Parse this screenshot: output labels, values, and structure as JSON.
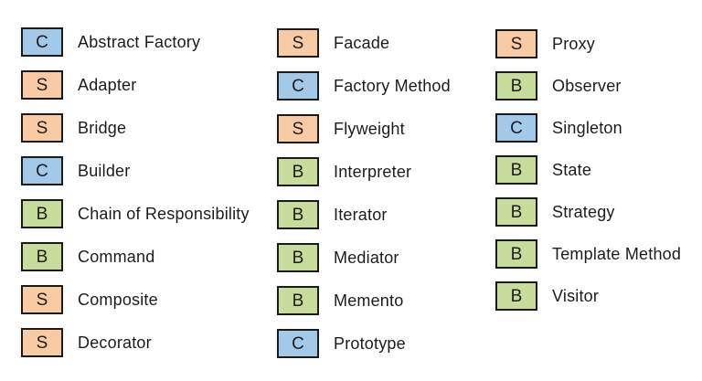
{
  "legend": {
    "category_colors": {
      "C": "#A3C9E9",
      "S": "#F8CBA4",
      "B": "#C8DC9B"
    },
    "border_color": "#1A1A1A",
    "text_color": "#1C1C1C",
    "columns": [
      {
        "items": [
          {
            "badge": "C",
            "label": "Abstract Factory"
          },
          {
            "badge": "S",
            "label": "Adapter"
          },
          {
            "badge": "S",
            "label": "Bridge"
          },
          {
            "badge": "C",
            "label": "Builder"
          },
          {
            "badge": "B",
            "label": "Chain of Responsibility"
          },
          {
            "badge": "B",
            "label": "Command"
          },
          {
            "badge": "S",
            "label": "Composite"
          },
          {
            "badge": "S",
            "label": "Decorator"
          }
        ]
      },
      {
        "items": [
          {
            "badge": "S",
            "label": "Facade"
          },
          {
            "badge": "C",
            "label": "Factory Method"
          },
          {
            "badge": "S",
            "label": "Flyweight"
          },
          {
            "badge": "B",
            "label": "Interpreter"
          },
          {
            "badge": "B",
            "label": "Iterator"
          },
          {
            "badge": "B",
            "label": "Mediator"
          },
          {
            "badge": "B",
            "label": "Memento"
          },
          {
            "badge": "C",
            "label": "Prototype"
          }
        ]
      },
      {
        "items": [
          {
            "badge": "S",
            "label": "Proxy"
          },
          {
            "badge": "B",
            "label": "Observer"
          },
          {
            "badge": "C",
            "label": "Singleton"
          },
          {
            "badge": "B",
            "label": "State"
          },
          {
            "badge": "B",
            "label": "Strategy"
          },
          {
            "badge": "B",
            "label": "Template Method"
          },
          {
            "badge": "B",
            "label": "Visitor"
          }
        ]
      }
    ]
  }
}
